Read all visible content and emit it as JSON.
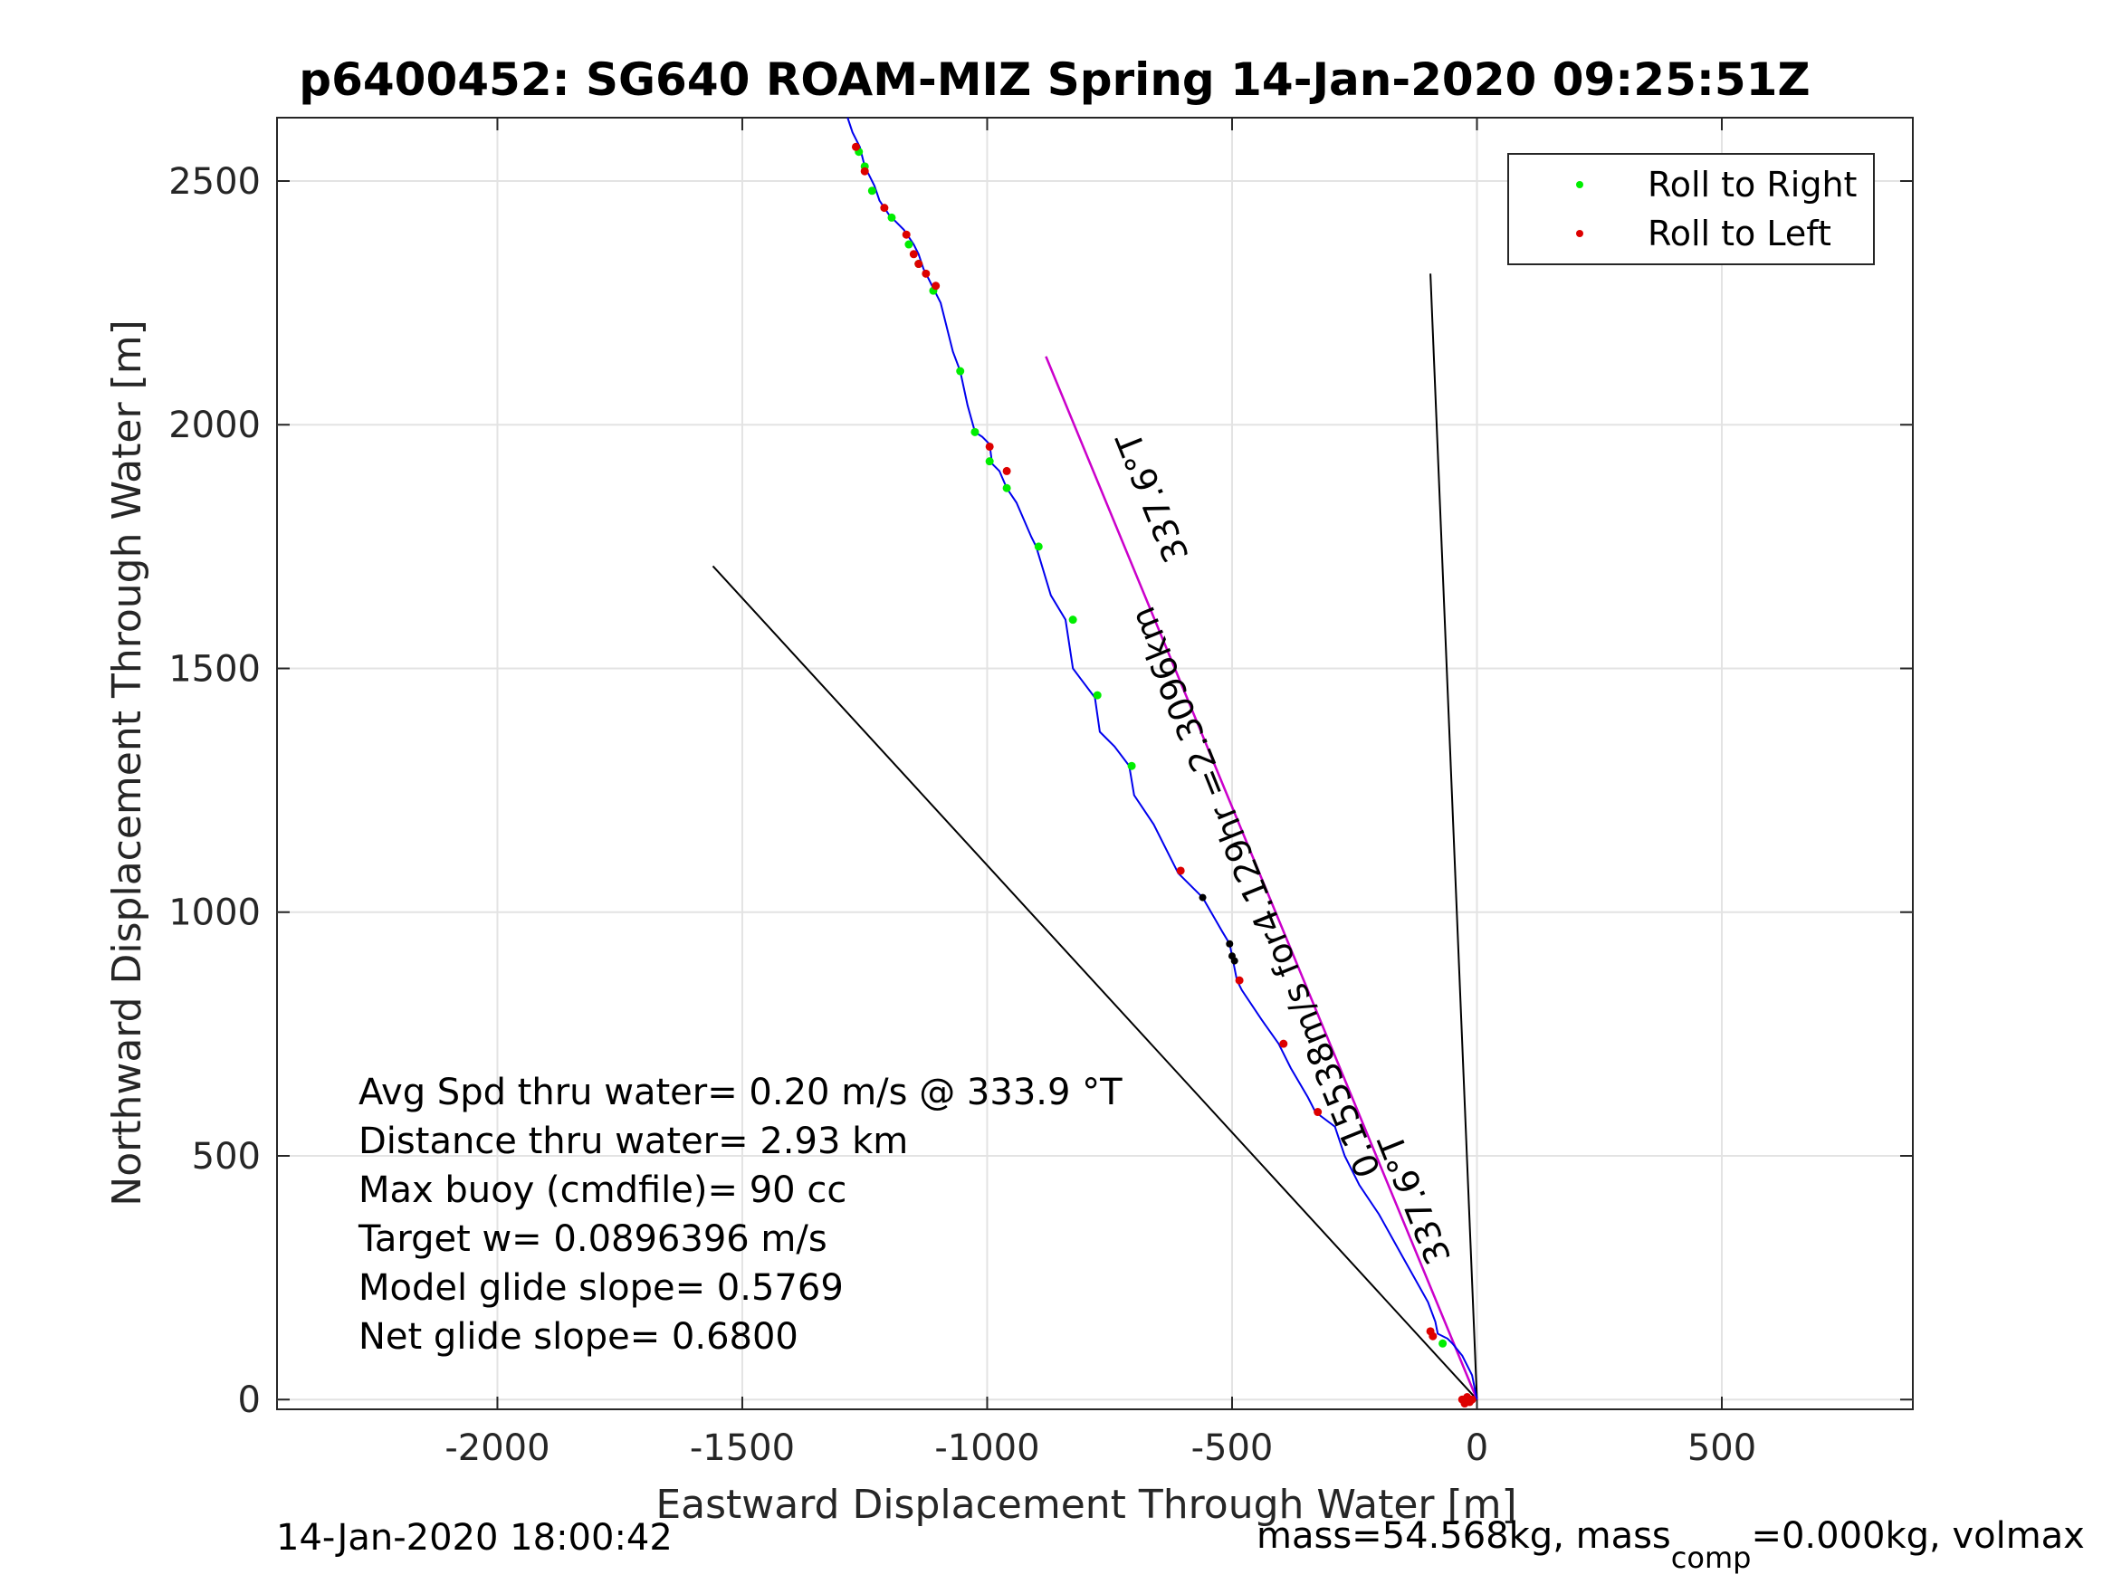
{
  "chart_data": {
    "type": "line",
    "title": "p6400452: SG640 ROAM-MIZ Spring 14-Jan-2020 09:25:51Z",
    "xlabel": "Eastward Displacement Through Water [m]",
    "ylabel": "Northward Displacement Through Water [m]",
    "xlim": [
      -2450,
      890
    ],
    "ylim": [
      -20,
      2630
    ],
    "xticks": [
      -2000,
      -1500,
      -1000,
      -500,
      0,
      500
    ],
    "yticks": [
      0,
      500,
      1000,
      1500,
      2000,
      2500
    ],
    "grid": true,
    "legend_position": "top-right",
    "legend": [
      {
        "label": "Roll to Right",
        "color": "#00ee00"
      },
      {
        "label": "Roll to Left",
        "color": "#dd0000"
      }
    ],
    "colors": {
      "track": "#0000ee",
      "heading_line": "#cc00cc",
      "ref_line": "#000000"
    },
    "track": {
      "x": [
        0,
        -10,
        -30,
        -50,
        -60,
        -80,
        -85,
        -100,
        -150,
        -200,
        -240,
        -255,
        -270,
        -290,
        -330,
        -345,
        -380,
        -405,
        -440,
        -480,
        -490,
        -500,
        -505,
        -520,
        -560,
        -610,
        -620,
        -660,
        -700,
        -710,
        -740,
        -770,
        -780,
        -810,
        -825,
        -840,
        -870,
        -900,
        -910,
        -940,
        -960,
        -975,
        -990,
        -995,
        -1010,
        -1025,
        -1040,
        -1055,
        -1070,
        -1095,
        -1110,
        -1120,
        -1130,
        -1140,
        -1150,
        -1160,
        -1170,
        -1190,
        -1200,
        -1210,
        -1220,
        -1230,
        -1240,
        -1250,
        -1255,
        -1260,
        -1265,
        -1275,
        -1285
      ],
      "y": [
        0,
        50,
        90,
        115,
        125,
        135,
        160,
        200,
        290,
        380,
        440,
        470,
        500,
        560,
        590,
        620,
        680,
        730,
        780,
        840,
        860,
        910,
        935,
        960,
        1030,
        1080,
        1100,
        1180,
        1240,
        1300,
        1340,
        1370,
        1440,
        1480,
        1500,
        1600,
        1650,
        1750,
        1770,
        1840,
        1870,
        1905,
        1920,
        1960,
        1975,
        1985,
        2040,
        2110,
        2150,
        2250,
        2280,
        2300,
        2320,
        2350,
        2370,
        2385,
        2400,
        2420,
        2430,
        2445,
        2460,
        2490,
        2510,
        2530,
        2550,
        2570,
        2580,
        2600,
        2630
      ]
    },
    "roll_right": {
      "x": [
        -70,
        -1055,
        -1025,
        -995,
        -960,
        -895,
        -825,
        -775,
        -705,
        -1110,
        -1140,
        -1160,
        -1195,
        -1235,
        -1250,
        -1262
      ],
      "y": [
        115,
        2110,
        1985,
        1925,
        1870,
        1750,
        1600,
        1445,
        1300,
        2275,
        2330,
        2370,
        2425,
        2480,
        2530,
        2560
      ]
    },
    "roll_left": {
      "x": [
        -90,
        -95,
        -605,
        -485,
        -395,
        -325,
        -995,
        -960,
        -1105,
        -1125,
        -1140,
        -1150,
        -1165,
        -1210,
        -1250,
        -1268,
        -10,
        -15,
        -20,
        -25,
        -30
      ],
      "y": [
        130,
        140,
        1085,
        860,
        730,
        590,
        1955,
        1905,
        2285,
        2310,
        2330,
        2350,
        2390,
        2445,
        2520,
        2570,
        0,
        -5,
        5,
        -8,
        0
      ]
    },
    "waypoints": {
      "x": [
        -560,
        -505,
        -500,
        -495
      ],
      "y": [
        1030,
        935,
        910,
        900
      ]
    },
    "heading_line": {
      "x": [
        -880,
        0
      ],
      "y": [
        2140,
        0
      ]
    },
    "ref_lines": [
      {
        "x": [
          0,
          -1560
        ],
        "y": [
          0,
          1710
        ]
      },
      {
        "x": [
          0,
          -95
        ],
        "y": [
          0,
          2310
        ]
      },
      {
        "x": [
          0,
          -880
        ],
        "y": [
          0,
          2140
        ]
      }
    ],
    "annotations": [
      {
        "text": "337.6°T",
        "x": -640,
        "y": 1860,
        "rotation": -68
      },
      {
        "text": "0.15538m/s for4.129hr =2.3096km",
        "x": -430,
        "y": 1050,
        "rotation": -68
      },
      {
        "text": "337.6°T",
        "x": -105,
        "y": 420,
        "rotation": -68
      }
    ]
  },
  "stats": [
    "Avg Spd thru water=  0.20 m/s @ 333.9 °T",
    "Distance thru water=  2.93 km",
    "Max buoy (cmdfile)= 90 cc",
    "Target w= 0.0896396 m/s",
    "Model glide slope= 0.5769",
    "Net glide slope= 0.6800"
  ],
  "footer": {
    "timestamp": "14-Jan-2020 18:00:42",
    "mass_prefix": "mass=54.568kg, mass",
    "mass_sub": "comp",
    "mass_suffix": "=0.000kg, volmax"
  }
}
